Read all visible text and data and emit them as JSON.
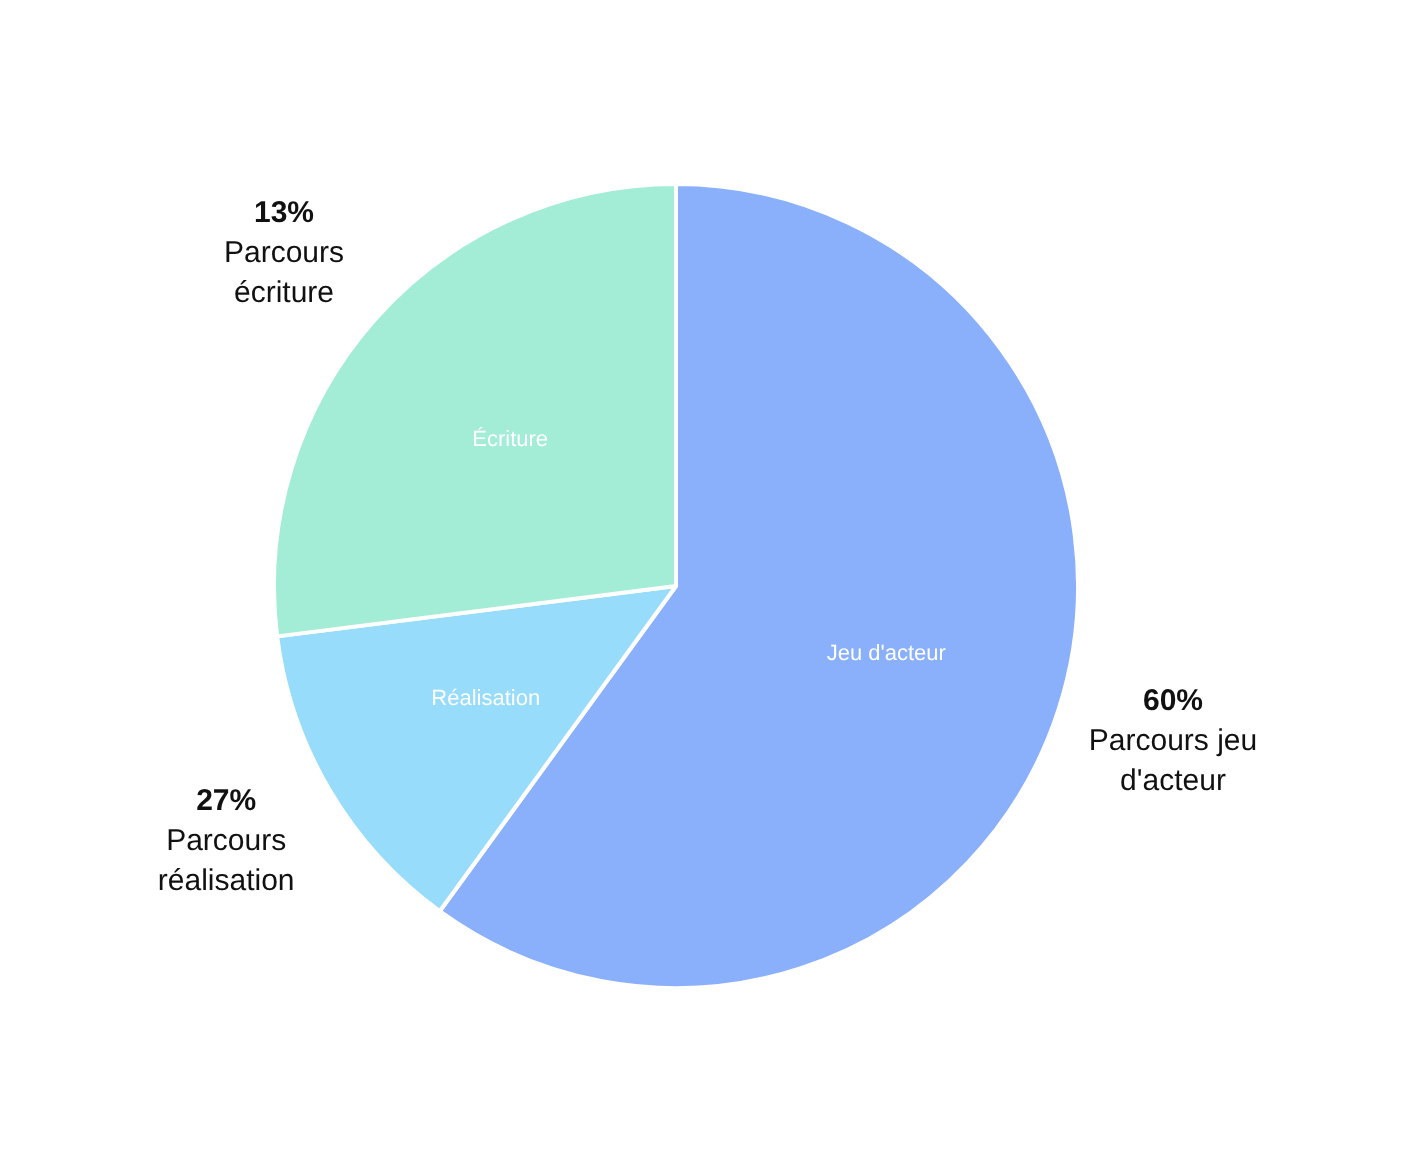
{
  "chart_data": {
    "type": "pie",
    "categories": [
      "Jeu d'acteur",
      "Réalisation",
      "Écriture"
    ],
    "values": [
      60,
      13,
      27
    ],
    "colors": [
      "#8ab0fb",
      "#97dcfa",
      "#a3ecd5"
    ],
    "annotations": [
      "60%\nParcours jeu d'acteur",
      "27%\nParcours réalisation",
      "13%\nParcours écriture"
    ],
    "legend": false
  }
}
